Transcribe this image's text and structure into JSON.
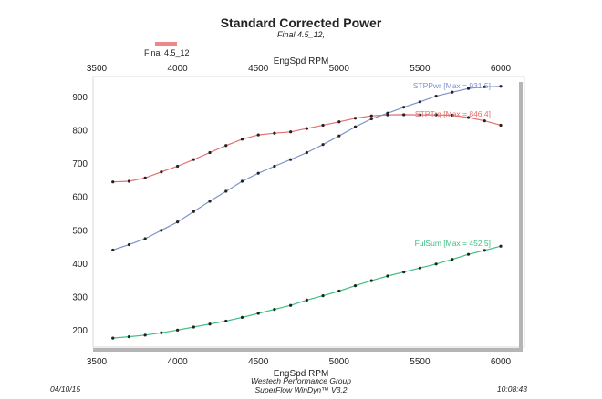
{
  "chart_data": {
    "type": "line",
    "title": "Standard Corrected Power",
    "subtitle": "Final 4.5_12,",
    "legend": [
      {
        "label": "Final 4.5_12",
        "color": "#ee8888"
      }
    ],
    "xlabel": "EngSpd RPM",
    "xlabel_top": "EngSpd RPM",
    "xlim": [
      3500,
      6000
    ],
    "ylim": [
      150,
      950
    ],
    "x_ticks": [
      3500,
      4000,
      4500,
      5000,
      5500,
      6000
    ],
    "y_ticks": [
      200,
      300,
      400,
      500,
      600,
      700,
      800,
      900
    ],
    "x": [
      3600,
      3700,
      3800,
      3900,
      4000,
      4100,
      4200,
      4300,
      4400,
      4500,
      4600,
      4700,
      4800,
      4900,
      5000,
      5100,
      5200,
      5300,
      5400,
      5500,
      5600,
      5700,
      5800,
      5900,
      6000
    ],
    "series": [
      {
        "name": "STPPwr",
        "label": "STPPwr [Max = 931.5]",
        "color": "#7b93cc",
        "values": [
          441,
          457,
          475,
          500,
          525,
          556,
          587,
          617,
          647,
          671,
          692,
          712,
          733,
          757,
          783,
          810,
          834,
          851,
          869,
          885,
          902,
          914,
          925,
          930,
          931.5
        ]
      },
      {
        "name": "STPTrq",
        "label": "STPTrq [Max = 846.4]",
        "color": "#e46f6f",
        "values": [
          645,
          647,
          657,
          675,
          692,
          712,
          733,
          754,
          773,
          786,
          791,
          795,
          805,
          815,
          825,
          836,
          843,
          846,
          846.4,
          846,
          846,
          845,
          838,
          828,
          815
        ]
      },
      {
        "name": "FulSum",
        "label": "FulSum [Max = 452.5]",
        "color": "#3cbf80",
        "values": [
          177,
          181,
          186,
          193,
          201,
          210,
          219,
          228,
          239,
          251,
          263,
          275,
          291,
          304,
          318,
          334,
          349,
          363,
          375,
          387,
          399,
          413,
          428,
          440,
          452.5
        ]
      }
    ]
  },
  "footer": {
    "date": "04/10/15",
    "company": "Westech Performance Group",
    "software": "SuperFlow WinDyn™ V3.2",
    "time": "10:08:43"
  }
}
